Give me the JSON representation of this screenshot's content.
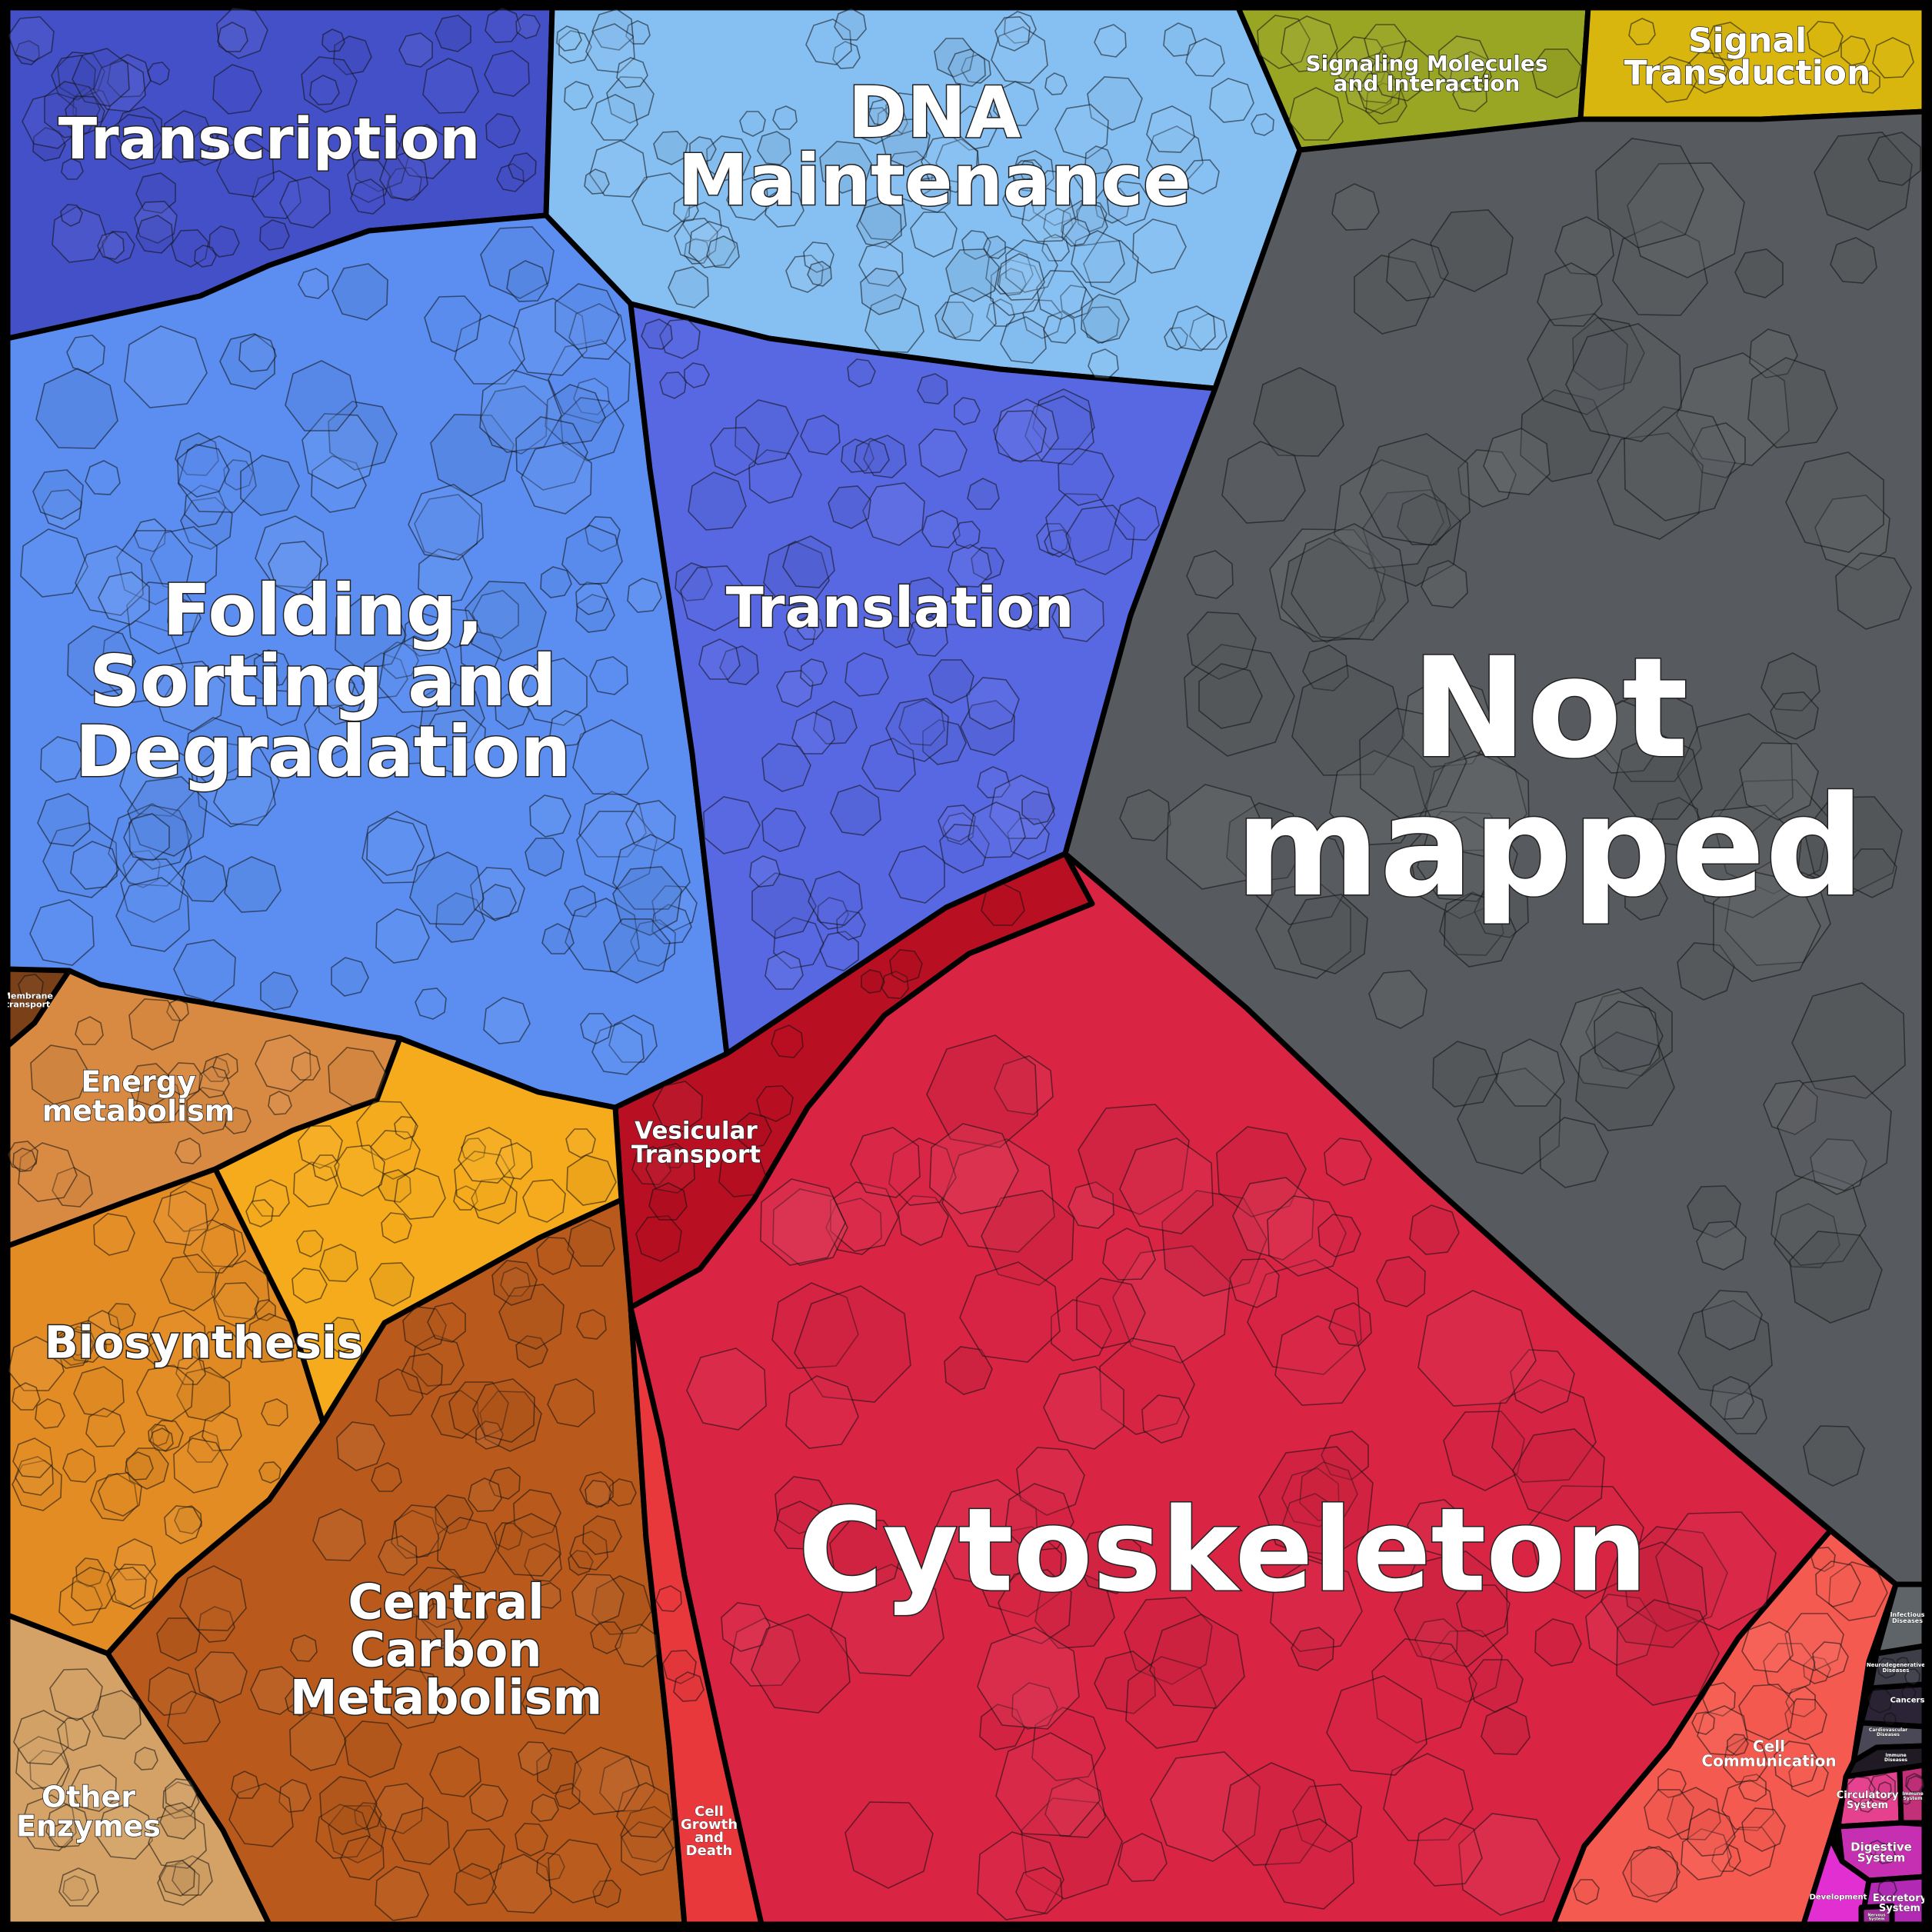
{
  "regions": [
    {
      "id": "transcription",
      "label": [
        "Transcription"
      ],
      "color": "#4450c8"
    },
    {
      "id": "dna-maintenance",
      "label": [
        "DNA",
        "Maintenance"
      ],
      "color": "#86bff2"
    },
    {
      "id": "signaling-molecules",
      "label": [
        "Signaling Molecules",
        "and Interaction"
      ],
      "color": "#99a624"
    },
    {
      "id": "signal-transduction",
      "label": [
        "Signal",
        "Transduction"
      ],
      "color": "#d9b60e"
    },
    {
      "id": "folding-sorting",
      "label": [
        "Folding,",
        "Sorting and",
        "Degradation"
      ],
      "color": "#5b8ef0"
    },
    {
      "id": "translation",
      "label": [
        "Translation"
      ],
      "color": "#5868e2"
    },
    {
      "id": "not-mapped",
      "label": [
        "Not",
        "mapped"
      ],
      "color": "#575a5e"
    },
    {
      "id": "membrane-transport",
      "label": [
        "Membrane",
        "transport"
      ],
      "color": "#7a4018"
    },
    {
      "id": "energy-metabolism",
      "label": [
        "Energy",
        "metabolism"
      ],
      "color": "#d88a42"
    },
    {
      "id": "vesicular-transport",
      "label": [
        "Vesicular",
        "Transport"
      ],
      "color": "#b90f22"
    },
    {
      "id": "biosynthesis",
      "label": [
        "Biosynthesis"
      ],
      "color": "#e38c24"
    },
    {
      "id": "amino-acid",
      "label": [],
      "color": "#f5ab1c"
    },
    {
      "id": "central-carbon",
      "label": [
        "Central",
        "Carbon",
        "Metabolism"
      ],
      "color": "#b95a1c"
    },
    {
      "id": "other-enzymes",
      "label": [
        "Other",
        "Enzymes"
      ],
      "color": "#d4a266"
    },
    {
      "id": "cytoskeleton",
      "label": [
        "Cytoskeleton"
      ],
      "color": "#d92444"
    },
    {
      "id": "cell-growth",
      "label": [
        "Cell",
        "Growth",
        "and",
        "Death"
      ],
      "color": "#e8383c"
    },
    {
      "id": "cell-communication",
      "label": [
        "Cell",
        "Communication"
      ],
      "color": "#f55a50"
    },
    {
      "id": "infectious",
      "label": [
        "Infectious",
        "Diseases"
      ],
      "color": "#5e6468"
    },
    {
      "id": "neuro",
      "label": [
        "Neurodegenerative",
        "Diseases"
      ],
      "color": "#3e3e48"
    },
    {
      "id": "cancers",
      "label": [
        "Cancers"
      ],
      "color": "#2b2436"
    },
    {
      "id": "cardio",
      "label": [
        "Cardiovascular",
        "Diseases"
      ],
      "color": "#4a4856"
    },
    {
      "id": "immune-disease",
      "label": [
        "Immune",
        "Diseases"
      ],
      "color": "#1f1a24"
    },
    {
      "id": "circulatory",
      "label": [
        "Circulatory",
        "System"
      ],
      "color": "#e5418e"
    },
    {
      "id": "immune-system",
      "label": [
        "Immune",
        "System"
      ],
      "color": "#c2307a"
    },
    {
      "id": "digestive",
      "label": [
        "Digestive",
        "System"
      ],
      "color": "#c72fb2"
    },
    {
      "id": "development",
      "label": [
        "Development"
      ],
      "color": "#e22fd2"
    },
    {
      "id": "excretory",
      "label": [
        "Excretory",
        "System"
      ],
      "color": "#b22ab4"
    },
    {
      "id": "nervous",
      "label": [
        "Nervous",
        "System"
      ],
      "color": "#a02898"
    }
  ]
}
